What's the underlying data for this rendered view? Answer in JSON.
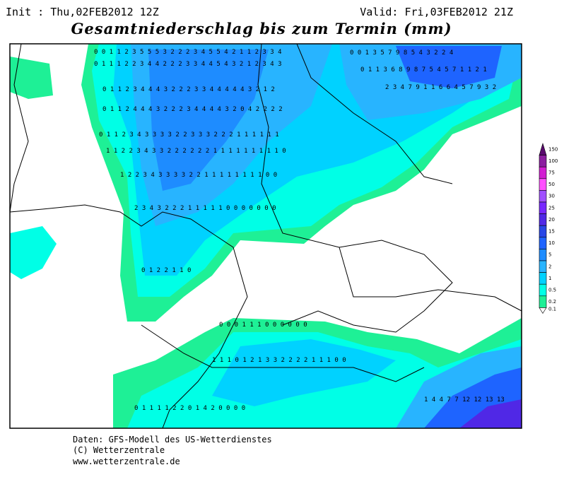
{
  "header": {
    "init": "Init : Thu,02FEB2012 12Z",
    "valid": "Valid: Fri,03FEB2012 21Z",
    "title": "Gesamtniederschlag bis zum Termin (mm)"
  },
  "map": {
    "grid_rows": [
      "0 0 1 1 2 3 5 5 5 3 2 2 2 3 4 5 5 4 2 1 1 2 3 3 4",
      "0 1 1 1 2 2 3 4 4 2 2 2 3 3 4 4 5 4 3 2 1 2 3 4 3",
      "0 1 1 2 3 4 4 4 3 2 2 2 3 3 4 4 4 4 4 3 2 1 2",
      "0 1 1 2 4 4 4 3 2 2 2 3 4 4 4 4 3 2 0 4 2 2 2 2",
      "0 1 1 2 3 4 3 3 3 3 2 2 3 3 3 2 2 2 1 1 1 1 1 1",
      "1 1 2 2 3 4 3 3 2 2 2 2 2 2 1 1 1 1 1 1 1 1 1 0",
      "1 2 2 3 4 3 3 3 3 2 2 1 1 1 1 1 1 1 1 0 0",
      "2 3 4 3 2 2 2 1 1 1 1 1 0 0 0 0 0 0 0",
      "0 1 2 2 1 1 0",
      "0 0 1 3 5 7 9 8 5 4 3 2 2 4",
      "0 1 1 3 6 8 9 8 7 5 4 5 7 1 1 2 1",
      "2 3 4 7 9 1 1 6 6 4 5 7 9 3 2",
      "0 0 0 1 1 1 0 0 0 0 0 0",
      "1 1 1 0 1 2 1 3 3 2 2 2 2 1 1 1 0 0",
      "0 1 1 1 1 2 2 0 1 4 2 0 0 0 0",
      "1 4 4 7 7 12 12 13 13"
    ]
  },
  "legend": {
    "labels": [
      "150",
      "100",
      "75",
      "50",
      "30",
      "25",
      "20",
      "15",
      "10",
      "5",
      "2",
      "1",
      "0.5",
      "0.2",
      "0.1"
    ],
    "colors": [
      "#5a0a6e",
      "#8c1ea0",
      "#d21ed2",
      "#ff50ff",
      "#a050ff",
      "#7828ff",
      "#5028e6",
      "#2846e6",
      "#1e64ff",
      "#1e8cff",
      "#28b4ff",
      "#00d2ff",
      "#00ffe6",
      "#1ef096",
      "#ffffff"
    ]
  },
  "footer": {
    "line1": "Daten: GFS-Modell des US-Wetterdienstes",
    "line2": "(C) Wetterzentrale",
    "line3": "www.wetterzentrale.de"
  }
}
